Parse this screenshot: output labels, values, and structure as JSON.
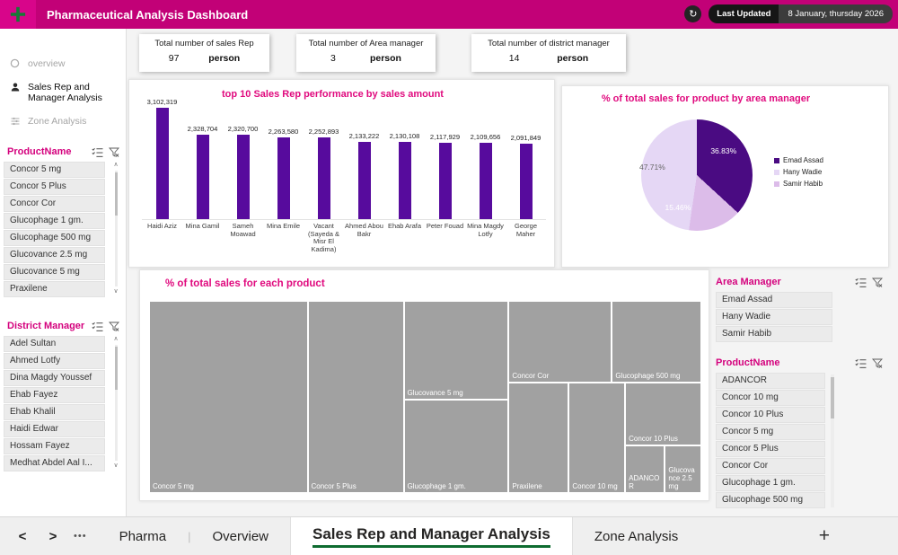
{
  "colors": {
    "header_bg": "#C20177",
    "accent": "#E00A7E",
    "bar": "#570B9D",
    "treemap_tile": "#A1A1A1"
  },
  "header": {
    "title": "Pharmaceutical Analysis Dashboard",
    "last_updated_label": "Last Updated",
    "last_updated_value": "8 January, thursday 2026"
  },
  "sidebar": {
    "nav": [
      {
        "label": "overview"
      },
      {
        "label": "Sales Rep and Manager Analysis"
      },
      {
        "label": "Zone Analysis"
      }
    ],
    "product_slicer": {
      "title": "ProductName",
      "items": [
        "Concor 5 mg",
        "Concor 5 Plus",
        "Concor Cor",
        "Glucophage 1 gm.",
        "Glucophage 500 mg",
        "Glucovance 2.5 mg",
        "Glucovance 5 mg",
        "Praxilene"
      ]
    },
    "district_slicer": {
      "title": "District Manager",
      "items": [
        "Adel Sultan",
        "Ahmed Lotfy",
        "Dina Magdy Youssef",
        "Ehab Fayez",
        "Ehab Khalil",
        "Haidi Edwar",
        "Hossam Fayez",
        "Medhat Abdel Aal I..."
      ]
    }
  },
  "kpis": [
    {
      "label": "Total number of sales Rep",
      "value": "97",
      "unit": "person"
    },
    {
      "label": "Total number of Area manager",
      "value": "3",
      "unit": "person"
    },
    {
      "label": "Total number of district manager",
      "value": "14",
      "unit": "person"
    }
  ],
  "chart_data": [
    {
      "type": "bar",
      "title": "top 10  Sales Rep performance by sales amount",
      "categories": [
        "Haidi Aziz",
        "Mina Gamil",
        "Sameh Moawad",
        "Mina Emile",
        "Vacant (Sayeda & Misr El Kadima)",
        "Ahmed Abou Bakr",
        "Ehab Arafa",
        "Peter Fouad",
        "Mina Magdy Lotfy",
        "George Maher"
      ],
      "values": [
        3102319,
        2328704,
        2320700,
        2263580,
        2252893,
        2133222,
        2130108,
        2117929,
        2109656,
        2091849
      ],
      "data_labels": [
        "3,102,319",
        "2,328,704",
        "2,320,700",
        "2,263,580",
        "2,252,893",
        "2,133,222",
        "2,130,108",
        "2,117,929",
        "2,109,656",
        "2,091,849"
      ],
      "ylim": [
        0,
        3102319
      ],
      "grid": false,
      "legend_position": "none"
    },
    {
      "type": "pie",
      "title": "% of total sales for product by area manager",
      "slices": [
        {
          "name": "Emad Assad",
          "value": 36.83,
          "label": "36.83%",
          "color": "#4A0B82",
          "label_pos": [
            74,
            28
          ],
          "label_color": "#FFFFFF"
        },
        {
          "name": "Samir Habib",
          "value": 15.46,
          "label": "15.46%",
          "color": "#DCBCE9",
          "label_pos": [
            33,
            79
          ],
          "label_color": "#FFFFFF"
        },
        {
          "name": "Hany Wadie",
          "value": 47.71,
          "label": "47.71%",
          "color": "#E5D7F5",
          "label_pos": [
            10,
            43
          ],
          "label_color": "#666666"
        }
      ],
      "legend": [
        "Emad Assad",
        "Hany Wadie",
        "Samir Habib"
      ],
      "legend_position": "right"
    },
    {
      "type": "treemap",
      "title": "% of total sales for each product",
      "items": [
        {
          "label": "Concor 5 mg",
          "x": 0,
          "y": 0,
          "w": 28.7,
          "h": 100
        },
        {
          "label": "Concor 5 Plus",
          "x": 28.7,
          "y": 0,
          "w": 17.4,
          "h": 100
        },
        {
          "label": "Glucovance 5 mg",
          "x": 46.1,
          "y": 0,
          "w": 19.0,
          "h": 51.6
        },
        {
          "label": "Glucophage 1 gm.",
          "x": 46.1,
          "y": 51.6,
          "w": 19.0,
          "h": 48.4
        },
        {
          "label": "Concor Cor",
          "x": 65.1,
          "y": 0,
          "w": 18.7,
          "h": 42.3
        },
        {
          "label": "Glucophage 500 mg",
          "x": 83.8,
          "y": 0,
          "w": 16.2,
          "h": 42.3
        },
        {
          "label": "Praxilene",
          "x": 65.1,
          "y": 42.3,
          "w": 10.9,
          "h": 57.7
        },
        {
          "label": "Concor 10 mg",
          "x": 76.0,
          "y": 42.3,
          "w": 10.2,
          "h": 57.7
        },
        {
          "label": "Concor 10 Plus",
          "x": 86.2,
          "y": 42.3,
          "w": 13.8,
          "h": 32.9
        },
        {
          "label": "ADANCOR",
          "x": 86.2,
          "y": 75.2,
          "w": 7.2,
          "h": 24.8
        },
        {
          "label": "Glucovance 2.5 mg",
          "x": 93.4,
          "y": 75.2,
          "w": 6.6,
          "h": 24.8
        }
      ]
    }
  ],
  "right_panel": {
    "area_slicer": {
      "title": "Area Manager",
      "items": [
        "Emad Assad",
        "Hany Wadie",
        "Samir Habib"
      ]
    },
    "product_slicer": {
      "title": "ProductName",
      "items": [
        "ADANCOR",
        "Concor 10 mg",
        "Concor 10 Plus",
        "Concor 5 mg",
        "Concor 5 Plus",
        "Concor Cor",
        "Glucophage 1 gm.",
        "Glucophage 500 mg"
      ]
    }
  },
  "footer": {
    "tabs": [
      "Pharma",
      "Overview",
      "Sales Rep and Manager Analysis",
      "Zone Analysis"
    ],
    "active_tab": "Sales Rep and Manager Analysis",
    "add_label": "+"
  }
}
